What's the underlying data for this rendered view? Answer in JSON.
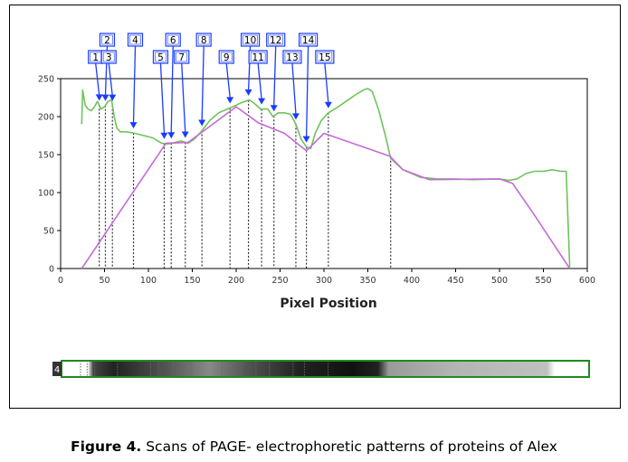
{
  "caption": {
    "label": "Figure 4.",
    "text": "Scans of PAGE- electrophoretic patterns of proteins of Alex"
  },
  "lane": {
    "label": "4"
  },
  "colors": {
    "profile": "#6fc35b",
    "baseline": "#c36bd6",
    "marker": "#1a3cff",
    "lane_border": "#1f8a1f"
  },
  "chart_data": {
    "type": "line",
    "title": "",
    "xlabel": "Pixel Position",
    "ylabel": "",
    "xlim": [
      0,
      600
    ],
    "ylim": [
      0,
      250
    ],
    "xticks": [
      0,
      50,
      100,
      150,
      200,
      250,
      300,
      350,
      400,
      450,
      500,
      550,
      600
    ],
    "yticks": [
      0,
      50,
      100,
      150,
      200,
      250
    ],
    "grid": false,
    "series": [
      {
        "role": "profile",
        "x": [
          24,
          25,
          28,
          31,
          35,
          38,
          42,
          46,
          50,
          54,
          58,
          61,
          64,
          68,
          75,
          85,
          95,
          105,
          115,
          122,
          130,
          137,
          145,
          152,
          160,
          170,
          180,
          190,
          200,
          205,
          210,
          215,
          220,
          228,
          236,
          242,
          248,
          255,
          262,
          268,
          274,
          280,
          285,
          290,
          297,
          305,
          315,
          325,
          335,
          345,
          350,
          355,
          362,
          370,
          376,
          390,
          410,
          430,
          450,
          470,
          500,
          510,
          520,
          530,
          540,
          550,
          560,
          570,
          574,
          576,
          580
        ],
        "y": [
          190,
          235,
          215,
          210,
          208,
          212,
          220,
          210,
          213,
          220,
          222,
          200,
          185,
          180,
          180,
          178,
          175,
          172,
          165,
          164,
          166,
          168,
          165,
          170,
          180,
          195,
          205,
          210,
          215,
          218,
          220,
          222,
          218,
          210,
          210,
          200,
          205,
          205,
          203,
          190,
          170,
          160,
          158,
          178,
          195,
          205,
          212,
          220,
          228,
          235,
          237,
          233,
          210,
          175,
          145,
          130,
          120,
          118,
          118,
          117,
          118,
          116,
          118,
          125,
          128,
          128,
          130,
          128,
          128,
          128,
          2
        ]
      },
      {
        "role": "baseline",
        "x": [
          24,
          120,
          145,
          200,
          225,
          255,
          280,
          300,
          375,
          390,
          420,
          500,
          515,
          540,
          580
        ],
        "y": [
          0,
          165,
          166,
          213,
          192,
          178,
          155,
          178,
          148,
          130,
          117,
          118,
          112,
          70,
          0
        ]
      }
    ],
    "bands": [
      {
        "label": "1",
        "x": 44
      },
      {
        "label": "2",
        "x": 51
      },
      {
        "label": "3",
        "x": 59
      },
      {
        "label": "4",
        "x": 83
      },
      {
        "label": "5",
        "x": 118
      },
      {
        "label": "6",
        "x": 126
      },
      {
        "label": "7",
        "x": 142
      },
      {
        "label": "8",
        "x": 161
      },
      {
        "label": "9",
        "x": 193
      },
      {
        "label": "10",
        "x": 214
      },
      {
        "label": "11",
        "x": 229
      },
      {
        "label": "12",
        "x": 243
      },
      {
        "label": "13",
        "x": 268
      },
      {
        "label": "14",
        "x": 280
      },
      {
        "label": "15",
        "x": 305
      }
    ],
    "extra_dashed_x": [
      376
    ]
  }
}
